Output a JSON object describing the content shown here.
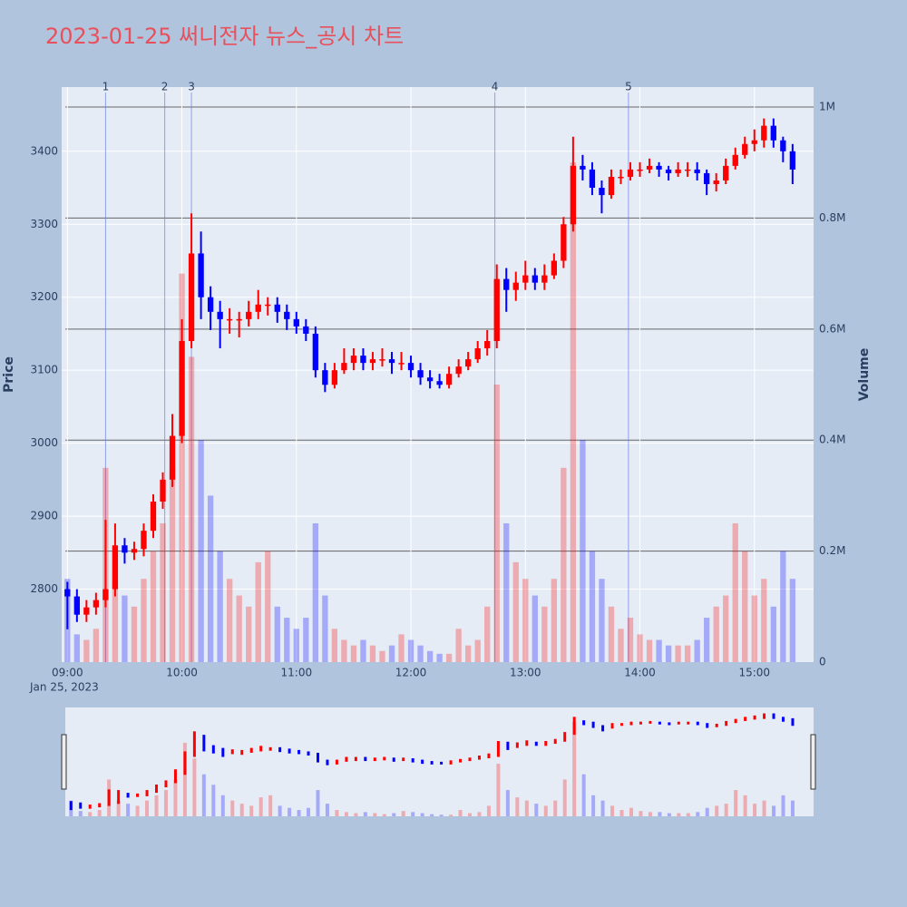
{
  "chart_data": {
    "type": "candlestick",
    "title": "2023-01-25 써니전자 뉴스_공시 차트",
    "x": [
      "09:00",
      "09:05",
      "09:10",
      "09:15",
      "09:20",
      "09:25",
      "09:30",
      "09:35",
      "09:40",
      "09:45",
      "09:50",
      "09:55",
      "10:00",
      "10:05",
      "10:10",
      "10:15",
      "10:20",
      "10:25",
      "10:30",
      "10:35",
      "10:40",
      "10:45",
      "10:50",
      "10:55",
      "11:00",
      "11:05",
      "11:10",
      "11:15",
      "11:20",
      "11:25",
      "11:30",
      "11:35",
      "11:40",
      "11:45",
      "11:50",
      "11:55",
      "12:00",
      "12:05",
      "12:10",
      "12:15",
      "12:20",
      "12:25",
      "12:30",
      "12:35",
      "12:40",
      "12:45",
      "12:50",
      "12:55",
      "13:00",
      "13:05",
      "13:10",
      "13:15",
      "13:20",
      "13:25",
      "13:30",
      "13:35",
      "13:40",
      "13:45",
      "13:50",
      "13:55",
      "14:00",
      "14:05",
      "14:10",
      "14:15",
      "14:20",
      "14:25",
      "14:30",
      "14:35",
      "14:40",
      "14:45",
      "14:50",
      "14:55",
      "15:00",
      "15:05",
      "15:10",
      "15:15",
      "15:20"
    ],
    "open": [
      2800,
      2790,
      2765,
      2775,
      2785,
      2800,
      2860,
      2850,
      2855,
      2880,
      2920,
      2950,
      3010,
      3140,
      3260,
      3200,
      3180,
      3170,
      3170,
      3170,
      3180,
      3190,
      3190,
      3180,
      3170,
      3160,
      3150,
      3100,
      3080,
      3100,
      3110,
      3120,
      3110,
      3115,
      3115,
      3110,
      3110,
      3100,
      3090,
      3085,
      3080,
      3095,
      3105,
      3115,
      3130,
      3140,
      3225,
      3210,
      3220,
      3230,
      3220,
      3230,
      3250,
      3300,
      3380,
      3375,
      3350,
      3340,
      3365,
      3365,
      3375,
      3375,
      3380,
      3375,
      3370,
      3375,
      3375,
      3370,
      3355,
      3360,
      3380,
      3395,
      3410,
      3415,
      3435,
      3415,
      3400
    ],
    "high": [
      2810,
      2800,
      2785,
      2795,
      2895,
      2890,
      2870,
      2865,
      2890,
      2930,
      2960,
      3040,
      3170,
      3315,
      3290,
      3215,
      3195,
      3185,
      3180,
      3195,
      3210,
      3200,
      3200,
      3190,
      3180,
      3170,
      3160,
      3110,
      3110,
      3130,
      3130,
      3130,
      3125,
      3130,
      3125,
      3125,
      3120,
      3110,
      3100,
      3095,
      3105,
      3115,
      3125,
      3140,
      3155,
      3245,
      3240,
      3235,
      3250,
      3240,
      3245,
      3260,
      3310,
      3420,
      3395,
      3385,
      3360,
      3375,
      3375,
      3385,
      3385,
      3390,
      3385,
      3380,
      3385,
      3385,
      3385,
      3375,
      3370,
      3390,
      3405,
      3420,
      3430,
      3445,
      3445,
      3420,
      3410
    ],
    "low": [
      2745,
      2755,
      2755,
      2765,
      2775,
      2790,
      2835,
      2840,
      2845,
      2870,
      2910,
      2940,
      3000,
      3130,
      3170,
      3155,
      3130,
      3150,
      3145,
      3160,
      3170,
      3175,
      3165,
      3155,
      3150,
      3140,
      3090,
      3070,
      3075,
      3095,
      3100,
      3100,
      3100,
      3105,
      3095,
      3100,
      3090,
      3080,
      3075,
      3075,
      3075,
      3090,
      3100,
      3110,
      3120,
      3130,
      3180,
      3195,
      3210,
      3210,
      3210,
      3225,
      3240,
      3290,
      3360,
      3340,
      3315,
      3335,
      3355,
      3360,
      3365,
      3370,
      3365,
      3360,
      3365,
      3365,
      3360,
      3340,
      3345,
      3355,
      3375,
      3390,
      3400,
      3405,
      3405,
      3385,
      3355
    ],
    "close": [
      2790,
      2765,
      2775,
      2785,
      2800,
      2860,
      2850,
      2855,
      2880,
      2920,
      2950,
      3010,
      3140,
      3260,
      3200,
      3180,
      3170,
      3170,
      3170,
      3180,
      3190,
      3190,
      3180,
      3170,
      3160,
      3150,
      3100,
      3080,
      3100,
      3110,
      3120,
      3110,
      3115,
      3115,
      3110,
      3110,
      3100,
      3090,
      3085,
      3080,
      3095,
      3105,
      3115,
      3130,
      3140,
      3225,
      3210,
      3220,
      3230,
      3220,
      3230,
      3250,
      3300,
      3380,
      3375,
      3350,
      3340,
      3365,
      3365,
      3375,
      3375,
      3380,
      3375,
      3370,
      3375,
      3375,
      3370,
      3355,
      3360,
      3380,
      3395,
      3410,
      3415,
      3435,
      3415,
      3400,
      3375
    ],
    "volume": [
      150000,
      50000,
      40000,
      60000,
      350000,
      150000,
      120000,
      100000,
      150000,
      200000,
      250000,
      350000,
      700000,
      550000,
      400000,
      300000,
      200000,
      150000,
      120000,
      100000,
      180000,
      200000,
      100000,
      80000,
      60000,
      80000,
      250000,
      120000,
      60000,
      40000,
      30000,
      40000,
      30000,
      20000,
      30000,
      50000,
      40000,
      30000,
      20000,
      15000,
      15000,
      60000,
      30000,
      40000,
      100000,
      500000,
      250000,
      180000,
      150000,
      120000,
      100000,
      150000,
      350000,
      900000,
      400000,
      200000,
      150000,
      100000,
      60000,
      80000,
      50000,
      40000,
      40000,
      30000,
      30000,
      30000,
      40000,
      80000,
      100000,
      120000,
      250000,
      200000,
      120000,
      150000,
      100000,
      200000,
      150000
    ],
    "up_color": "#ff0000",
    "down_color": "#0000ff",
    "xlim": [
      "08:57",
      "15:31"
    ],
    "xticks": [
      "09:00",
      "10:00",
      "11:00",
      "12:00",
      "13:00",
      "14:00",
      "15:00"
    ],
    "x_date_label": "Jan 25, 2023",
    "ylim": [
      2700,
      3488
    ],
    "yticks": [
      2800,
      2900,
      3000,
      3100,
      3200,
      3300,
      3400
    ],
    "ylabel": "Price",
    "y2lim": [
      0,
      1036000
    ],
    "y2ticks": [
      0,
      {
        "value": 200000,
        "label": "0.2M"
      },
      {
        "value": 400000,
        "label": "0.4M"
      },
      {
        "value": 600000,
        "label": "0.6M"
      },
      {
        "value": 800000,
        "label": "0.8M"
      },
      {
        "value": 1000000,
        "label": "1M"
      }
    ],
    "y2label": "Volume",
    "annotations": [
      {
        "label": "1",
        "x": "09:20"
      },
      {
        "label": "2",
        "x": "09:51"
      },
      {
        "label": "3",
        "x": "10:05"
      },
      {
        "label": "4",
        "x": "12:44"
      },
      {
        "label": "5",
        "x": "13:54"
      }
    ],
    "grid": true,
    "rangeslider": true
  }
}
